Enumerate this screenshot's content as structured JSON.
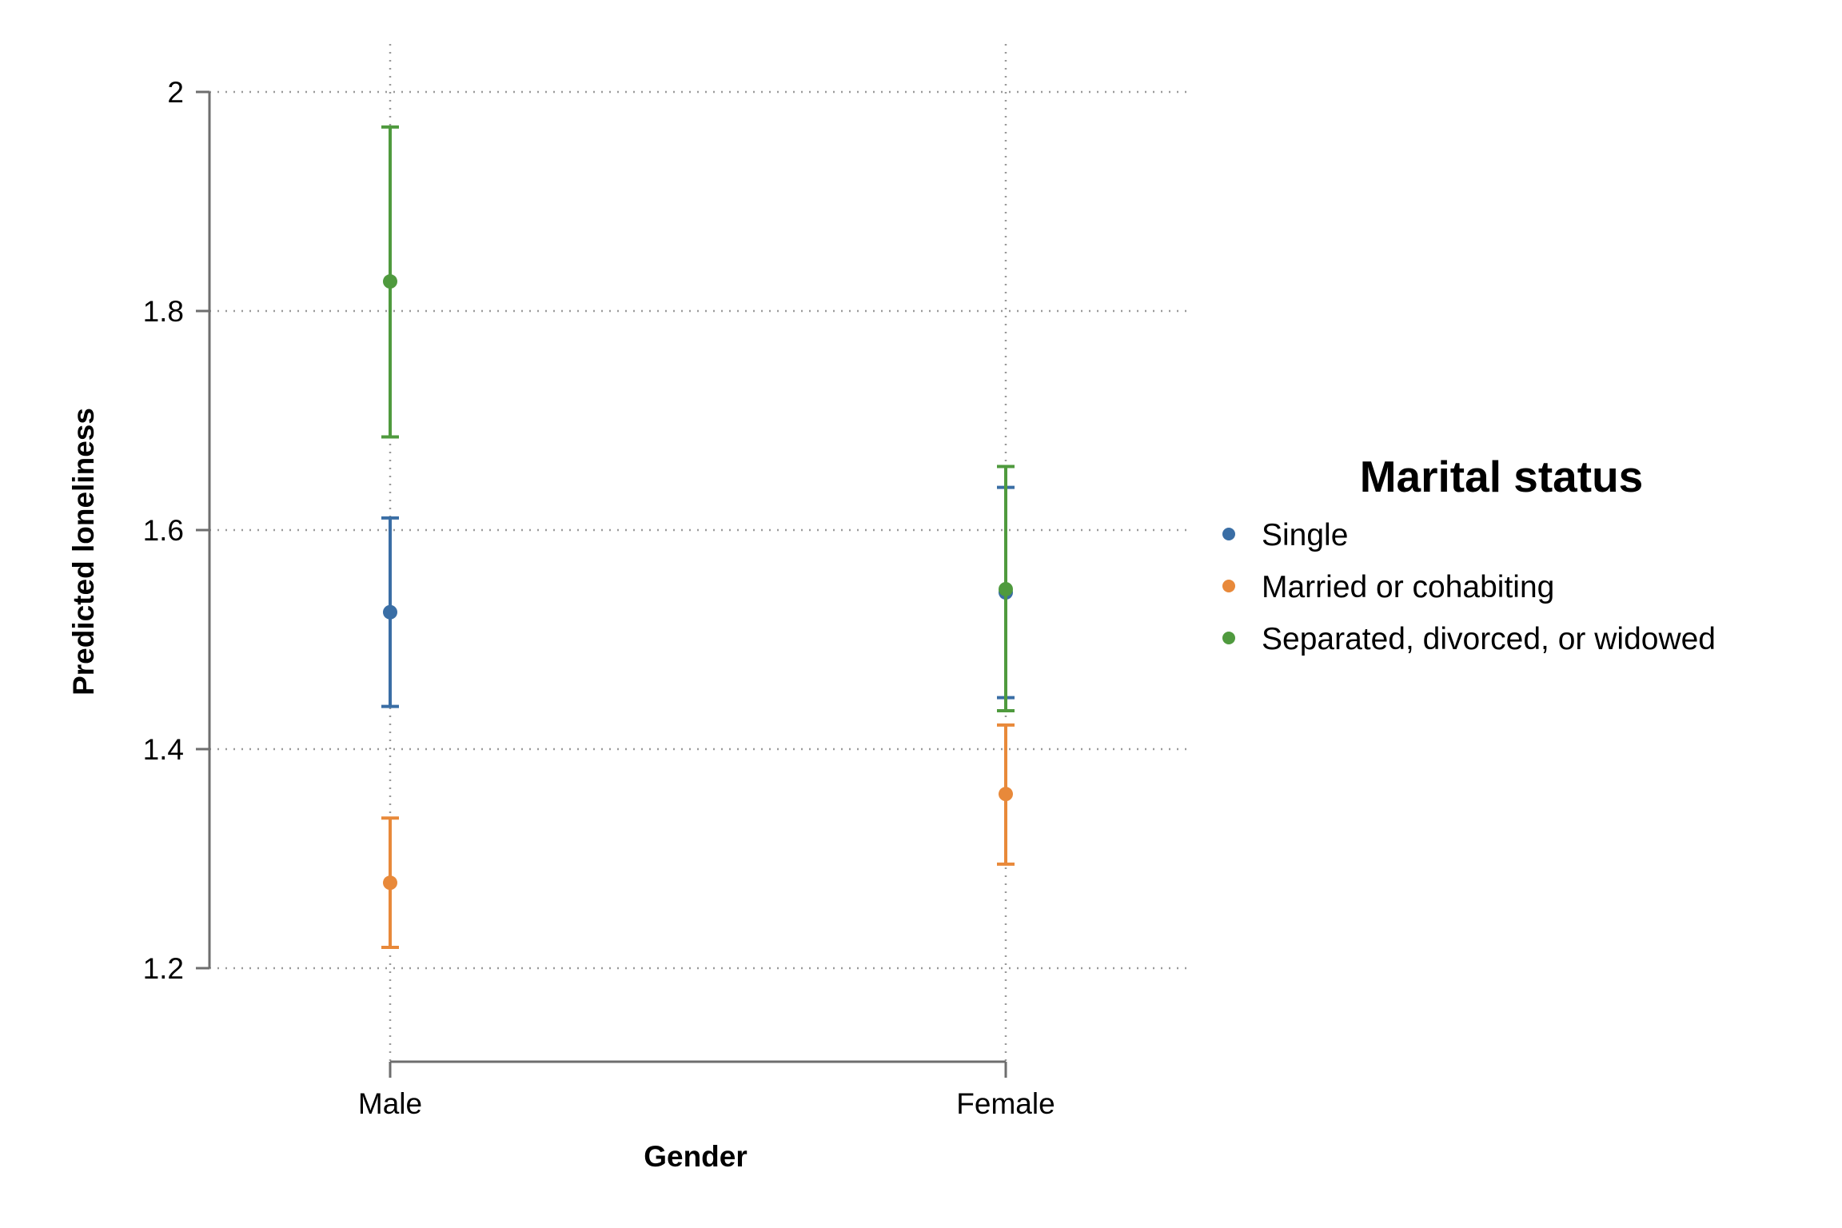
{
  "chart_data": {
    "type": "scatter",
    "subtype": "point-with-error-bars",
    "xlabel": "Gender",
    "ylabel": "Predicted loneliness",
    "categories": [
      "Male",
      "Female"
    ],
    "ylim": [
      1.12,
      2.04
    ],
    "yticks": [
      1.2,
      1.4,
      1.6,
      1.8,
      2
    ],
    "ytick_labels": [
      "1.2",
      "1.4",
      "1.6",
      "1.8",
      "2"
    ],
    "grid": true,
    "legend": {
      "title": "Marital status",
      "placement": "right"
    },
    "series": [
      {
        "name": "Single",
        "color": "#3a6ea5",
        "values": [
          1.525,
          1.543
        ],
        "lower": [
          1.439,
          1.447
        ],
        "upper": [
          1.611,
          1.639
        ]
      },
      {
        "name": "Married or cohabiting",
        "color": "#e8893a",
        "values": [
          1.278,
          1.359
        ],
        "lower": [
          1.219,
          1.295
        ],
        "upper": [
          1.337,
          1.422
        ]
      },
      {
        "name": "Separated, divorced, or widowed",
        "color": "#4f9a3e",
        "values": [
          1.827,
          1.546
        ],
        "lower": [
          1.685,
          1.435
        ],
        "upper": [
          1.968,
          1.658
        ]
      }
    ]
  }
}
